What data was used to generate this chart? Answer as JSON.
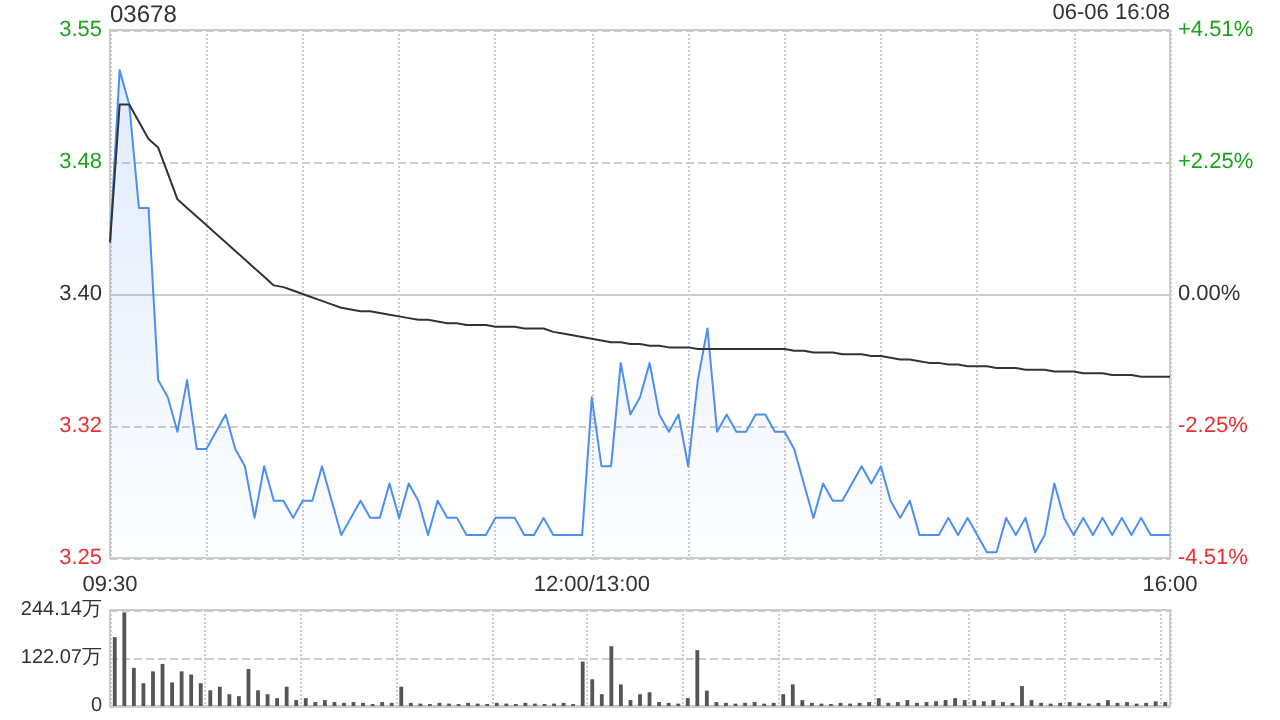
{
  "chart_data": [
    {
      "type": "line",
      "title": "03678",
      "annotations": [
        "06-06 16:08"
      ],
      "categories": [
        "09:30",
        null,
        null,
        null,
        null,
        null,
        null,
        null,
        null,
        null,
        null,
        null,
        null,
        null,
        null,
        null,
        null,
        null,
        null,
        null,
        null,
        null,
        null,
        null,
        null,
        null,
        null,
        null,
        null,
        null,
        null,
        null,
        null,
        null,
        null,
        null,
        null,
        null,
        null,
        null,
        null,
        null,
        null,
        null,
        null,
        null,
        null,
        null,
        null,
        null,
        "12:00/13:00",
        null,
        null,
        null,
        null,
        null,
        null,
        null,
        null,
        null,
        null,
        null,
        null,
        null,
        null,
        null,
        null,
        null,
        null,
        null,
        null,
        null,
        null,
        null,
        null,
        null,
        null,
        null,
        null,
        null,
        null,
        null,
        null,
        null,
        null,
        null,
        null,
        null,
        null,
        null,
        null,
        null,
        null,
        null,
        null,
        null,
        null,
        null,
        null,
        null,
        null,
        null,
        null,
        null,
        null,
        null,
        null,
        null,
        null,
        null,
        "16:00"
      ],
      "series": [
        {
          "type": "area",
          "color": "#4d8ff0",
          "values": [
            3.43,
            3.53,
            3.51,
            3.45,
            3.45,
            3.35,
            3.34,
            3.32,
            3.35,
            3.31,
            3.31,
            3.32,
            3.33,
            3.31,
            3.3,
            3.27,
            3.3,
            3.28,
            3.28,
            3.27,
            3.28,
            3.28,
            3.3,
            3.28,
            3.26,
            3.27,
            3.28,
            3.27,
            3.27,
            3.29,
            3.27,
            3.29,
            3.28,
            3.26,
            3.28,
            3.27,
            3.27,
            3.26,
            3.26,
            3.26,
            3.27,
            3.27,
            3.27,
            3.26,
            3.26,
            3.27,
            3.26,
            3.26,
            3.26,
            3.26,
            3.34,
            3.3,
            3.3,
            3.36,
            3.33,
            3.34,
            3.36,
            3.33,
            3.32,
            3.33,
            3.3,
            3.35,
            3.38,
            3.32,
            3.33,
            3.32,
            3.32,
            3.33,
            3.33,
            3.32,
            3.32,
            3.31,
            3.29,
            3.27,
            3.29,
            3.28,
            3.28,
            3.29,
            3.3,
            3.29,
            3.3,
            3.28,
            3.27,
            3.28,
            3.26,
            3.26,
            3.26,
            3.27,
            3.26,
            3.27,
            3.26,
            3.25,
            3.25,
            3.27,
            3.26,
            3.27,
            3.25,
            3.26,
            3.29,
            3.27,
            3.26,
            3.27,
            3.26,
            3.27,
            3.26,
            3.27,
            3.26,
            3.27,
            3.26,
            3.26,
            3.26
          ]
        },
        {
          "type": "line",
          "color": "#333333",
          "values": [
            3.43,
            3.51,
            3.51,
            3.5,
            3.49,
            3.485,
            3.47,
            3.455,
            3.45,
            3.445,
            3.44,
            3.435,
            3.43,
            3.425,
            3.42,
            3.415,
            3.41,
            3.405,
            3.404,
            3.402,
            3.4,
            3.398,
            3.396,
            3.394,
            3.392,
            3.391,
            3.39,
            3.39,
            3.389,
            3.388,
            3.387,
            3.386,
            3.385,
            3.385,
            3.384,
            3.383,
            3.383,
            3.382,
            3.382,
            3.382,
            3.381,
            3.381,
            3.381,
            3.38,
            3.38,
            3.38,
            3.378,
            3.377,
            3.376,
            3.375,
            3.374,
            3.373,
            3.372,
            3.372,
            3.371,
            3.371,
            3.37,
            3.37,
            3.369,
            3.369,
            3.369,
            3.368,
            3.368,
            3.368,
            3.368,
            3.368,
            3.368,
            3.368,
            3.368,
            3.368,
            3.368,
            3.367,
            3.367,
            3.366,
            3.366,
            3.366,
            3.365,
            3.365,
            3.365,
            3.364,
            3.364,
            3.363,
            3.362,
            3.362,
            3.361,
            3.36,
            3.36,
            3.359,
            3.359,
            3.358,
            3.358,
            3.358,
            3.357,
            3.357,
            3.357,
            3.356,
            3.356,
            3.356,
            3.355,
            3.355,
            3.355,
            3.354,
            3.354,
            3.354,
            3.353,
            3.353,
            3.353,
            3.352,
            3.352,
            3.352,
            3.352
          ]
        }
      ],
      "ylim": [
        3.2467,
        3.5533
      ],
      "yticks": [
        {
          "value": 3.5533,
          "label": "3.55"
        },
        {
          "value": 3.4767,
          "label": "3.48"
        },
        {
          "value": 3.4,
          "label": "3.40"
        },
        {
          "value": 3.3233,
          "label": "3.32"
        },
        {
          "value": 3.2467,
          "label": "3.25"
        }
      ],
      "y2lim": [
        -4.51,
        4.51
      ],
      "y2ticks": [
        {
          "value": 4.51,
          "label": "+4.51%"
        },
        {
          "value": 2.255,
          "label": "+2.25%"
        },
        {
          "value": 0,
          "label": "0.00%"
        },
        {
          "value": -2.255,
          "label": "-2.25%"
        },
        {
          "value": -4.51,
          "label": "-4.51%"
        }
      ],
      "grid": true
    },
    {
      "type": "bar",
      "color": "#555555",
      "categories": [
        null,
        null,
        null,
        null,
        null,
        null,
        null,
        null,
        null,
        null,
        null,
        null,
        null,
        null,
        null,
        null,
        null,
        null,
        null,
        null,
        null,
        null,
        null,
        null,
        null,
        null,
        null,
        null,
        null,
        null,
        null,
        null,
        null,
        null,
        null,
        null,
        null,
        null,
        null,
        null,
        null,
        null,
        null,
        null,
        null,
        null,
        null,
        null,
        null,
        null,
        null,
        null,
        null,
        null,
        null,
        null,
        null,
        null,
        null,
        null,
        null,
        null,
        null,
        null,
        null,
        null,
        null,
        null,
        null,
        null,
        null,
        null,
        null,
        null,
        null,
        null,
        null,
        null,
        null,
        null,
        null,
        null,
        null,
        null,
        null,
        null,
        null,
        null,
        null,
        null,
        null,
        null,
        null,
        null,
        null,
        null,
        null,
        null,
        null,
        null,
        null,
        null,
        null,
        null,
        null,
        null,
        null,
        null,
        null,
        null,
        null
      ],
      "values": [
        175,
        238,
        97,
        58,
        88,
        107,
        60,
        88,
        80,
        58,
        40,
        49,
        30,
        25,
        94,
        40,
        30,
        20,
        49,
        15,
        20,
        10,
        15,
        10,
        8,
        10,
        8,
        5,
        10,
        8,
        49,
        8,
        6,
        5,
        8,
        6,
        5,
        8,
        6,
        5,
        8,
        6,
        5,
        8,
        6,
        5,
        6,
        8,
        5,
        113,
        68,
        30,
        152,
        55,
        15,
        30,
        35,
        10,
        8,
        6,
        20,
        142,
        39,
        10,
        8,
        6,
        8,
        10,
        6,
        8,
        30,
        55,
        15,
        8,
        6,
        5,
        8,
        6,
        8,
        10,
        20,
        8,
        10,
        15,
        8,
        10,
        12,
        15,
        20,
        15,
        15,
        12,
        15,
        10,
        8,
        51,
        15,
        8,
        6,
        8,
        10,
        8,
        6,
        8,
        15,
        8,
        10,
        6,
        8,
        12,
        10
      ],
      "ylim": [
        0,
        244.14
      ],
      "yticks": [
        {
          "value": 0,
          "label": "0"
        },
        {
          "value": 122.07,
          "label": "122.07万"
        },
        {
          "value": 244.14,
          "label": "244.14万"
        }
      ],
      "grid": true,
      "tick_labels": "y"
    }
  ]
}
